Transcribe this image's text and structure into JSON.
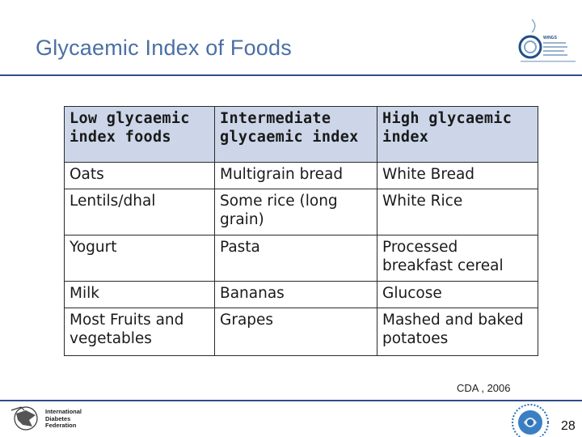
{
  "slide": {
    "title": "Glycaemic Index of Foods",
    "page_number": "28",
    "source": "CDA , 2006"
  },
  "logos": {
    "top_right_text": "WiNGS",
    "bottom_left_text": [
      "International",
      "Diabetes",
      "Federation"
    ]
  },
  "table": {
    "headers": [
      "Low glycaemic index foods",
      "Intermediate glycaemic index",
      "High glycaemic index"
    ],
    "rows": [
      [
        "Oats",
        "Multigrain bread",
        "White Bread"
      ],
      [
        "Lentils/dhal",
        "Some rice (long grain)",
        "White Rice"
      ],
      [
        "Yogurt",
        "Pasta",
        "Processed breakfast cereal"
      ],
      [
        "Milk",
        "Bananas",
        "Glucose"
      ],
      [
        "Most Fruits and vegetables",
        "Grapes",
        "Mashed and baked potatoes"
      ]
    ]
  },
  "colors": {
    "title": "#4a6fa5",
    "rule": "#2f4f86",
    "header_bg": "#ccd6e8"
  }
}
